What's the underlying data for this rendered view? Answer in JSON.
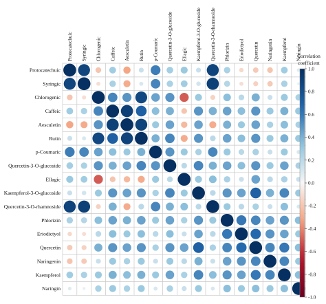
{
  "chart_data": {
    "type": "heatmap",
    "subtype": "correlation-circle-matrix",
    "title": "",
    "variables": [
      "Protocatechuic",
      "Syringic",
      "Chlorogenic",
      "Caffeic",
      "Aesculetin",
      "Rutin",
      "p-Coumaric",
      "Quercetin-3-O-glucoside",
      "Ellagic",
      "Kaempferol-3-O-glucoside",
      "Quercetin-3-O-rhamnoside",
      "Phlorizin",
      "Eriodictyol",
      "Quercetin",
      "Naringenin",
      "Kaempferol",
      "Naringin"
    ],
    "values": [
      [
        1.0,
        0.87,
        -0.2,
        0.28,
        -0.32,
        0.15,
        0.58,
        0.27,
        0.3,
        0.15,
        0.88,
        0.25,
        -0.12,
        -0.18,
        -0.2,
        0.28,
        0.08
      ],
      [
        0.87,
        1.0,
        -0.1,
        0.25,
        -0.3,
        0.1,
        0.55,
        0.25,
        0.28,
        0.12,
        0.9,
        0.22,
        -0.1,
        -0.15,
        -0.18,
        0.25,
        0.05
      ],
      [
        -0.2,
        -0.1,
        1.0,
        0.55,
        0.5,
        0.85,
        0.45,
        0.5,
        -0.5,
        0.3,
        -0.15,
        0.35,
        0.2,
        0.4,
        0.15,
        0.3,
        0.25
      ],
      [
        0.28,
        0.25,
        0.55,
        1.0,
        0.9,
        0.7,
        0.35,
        0.4,
        -0.2,
        0.5,
        0.4,
        0.45,
        0.35,
        0.5,
        0.3,
        0.4,
        0.3
      ],
      [
        -0.32,
        -0.3,
        0.5,
        0.9,
        1.0,
        0.88,
        0.3,
        0.45,
        -0.25,
        0.45,
        -0.3,
        0.4,
        0.3,
        0.45,
        0.25,
        0.35,
        0.25
      ],
      [
        0.15,
        0.1,
        0.85,
        0.7,
        0.88,
        1.0,
        0.4,
        0.55,
        -0.3,
        0.5,
        0.2,
        0.45,
        0.35,
        0.5,
        0.3,
        0.4,
        0.3
      ],
      [
        0.58,
        0.55,
        0.45,
        0.35,
        0.3,
        0.4,
        1.0,
        0.5,
        0.3,
        0.25,
        0.55,
        0.3,
        0.2,
        0.25,
        0.15,
        0.3,
        0.1
      ],
      [
        0.27,
        0.25,
        0.5,
        0.4,
        0.45,
        0.55,
        0.5,
        1.0,
        0.2,
        0.55,
        0.4,
        0.45,
        0.35,
        0.5,
        0.3,
        0.45,
        0.25
      ],
      [
        0.3,
        0.28,
        -0.5,
        -0.2,
        -0.25,
        -0.3,
        0.3,
        0.2,
        1.0,
        0.3,
        0.35,
        0.25,
        0.15,
        0.45,
        0.2,
        0.25,
        0.15
      ],
      [
        0.15,
        0.12,
        0.3,
        0.5,
        0.45,
        0.5,
        0.25,
        0.55,
        0.3,
        1.0,
        0.2,
        0.5,
        0.45,
        0.7,
        0.4,
        0.55,
        0.3
      ],
      [
        0.88,
        0.9,
        -0.15,
        0.4,
        -0.3,
        0.2,
        0.55,
        0.4,
        0.35,
        0.2,
        1.0,
        0.3,
        0.2,
        0.25,
        0.15,
        0.35,
        0.1
      ],
      [
        0.25,
        0.22,
        0.35,
        0.45,
        0.4,
        0.45,
        0.3,
        0.45,
        0.25,
        0.5,
        0.3,
        1.0,
        0.6,
        0.55,
        0.45,
        0.5,
        0.35
      ],
      [
        -0.12,
        -0.1,
        0.2,
        0.35,
        0.3,
        0.35,
        0.2,
        0.35,
        0.15,
        0.45,
        0.2,
        0.6,
        1.0,
        0.65,
        0.5,
        0.45,
        0.3
      ],
      [
        -0.18,
        -0.15,
        0.4,
        0.5,
        0.45,
        0.5,
        0.25,
        0.5,
        0.45,
        0.7,
        0.25,
        0.55,
        0.65,
        1.0,
        0.55,
        0.6,
        0.35
      ],
      [
        -0.2,
        -0.18,
        0.15,
        0.3,
        0.25,
        0.3,
        0.15,
        0.3,
        0.2,
        0.4,
        0.15,
        0.45,
        0.5,
        0.55,
        1.0,
        0.55,
        0.3
      ],
      [
        0.28,
        0.25,
        0.3,
        0.4,
        0.35,
        0.4,
        0.3,
        0.45,
        0.25,
        0.55,
        0.35,
        0.5,
        0.45,
        0.6,
        0.55,
        1.0,
        0.35
      ],
      [
        0.08,
        0.05,
        0.25,
        0.3,
        0.25,
        0.3,
        0.1,
        0.25,
        0.15,
        0.3,
        0.1,
        0.35,
        0.3,
        0.35,
        0.3,
        0.35,
        1.0
      ]
    ],
    "value_range": [
      -1,
      1
    ],
    "legend": {
      "title_lines": [
        "Correlation",
        "coefficient"
      ],
      "ticks": [
        "1.0",
        "0.8",
        "0.6",
        "0.4",
        "0.2",
        "0.0",
        "-0.2",
        "-0.4",
        "-0.6",
        "-0.8",
        "-1.0"
      ],
      "placement": "right"
    },
    "colors": {
      "positive": "#053061",
      "mid": "#f7f7f7",
      "negative": "#67001f",
      "grid": "#c8c8c8"
    }
  }
}
